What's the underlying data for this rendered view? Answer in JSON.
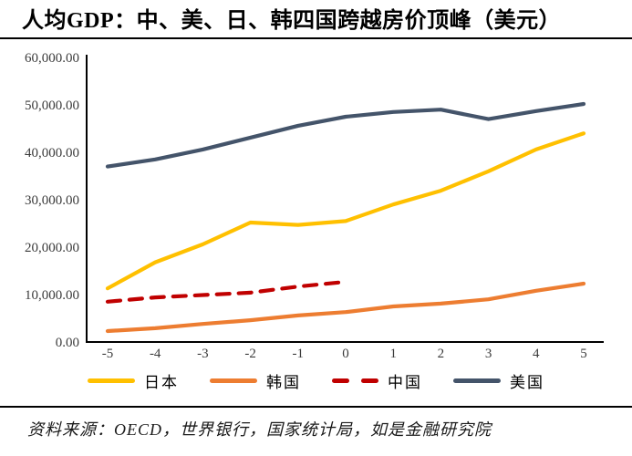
{
  "title": "人均GDP：中、美、日、韩四国跨越房价顶峰（美元）",
  "source": "资料来源：OECD，世界银行，国家统计局，如是金融研究院",
  "chart_data": {
    "type": "line",
    "x": [
      -5,
      -4,
      -3,
      -2,
      -1,
      0,
      1,
      2,
      3,
      4,
      5
    ],
    "series": [
      {
        "name": "日本",
        "color": "#FFC000",
        "dashed": false,
        "values": [
          11300,
          16800,
          20600,
          25200,
          24700,
          25500,
          29000,
          31900,
          36000,
          40600,
          44000
        ]
      },
      {
        "name": "韩国",
        "color": "#ED7D31",
        "dashed": false,
        "values": [
          2300,
          2900,
          3800,
          4600,
          5600,
          6300,
          7500,
          8100,
          9000,
          10800,
          12300
        ]
      },
      {
        "name": "中国",
        "color": "#C00000",
        "dashed": true,
        "values": [
          8500,
          9400,
          9900,
          10400,
          11700,
          12700,
          null,
          null,
          null,
          null,
          null
        ]
      },
      {
        "name": "美国",
        "color": "#44546A",
        "dashed": false,
        "values": [
          37000,
          38500,
          40600,
          43100,
          45600,
          47500,
          48500,
          49000,
          47000,
          48700,
          50200
        ]
      }
    ],
    "title": "人均GDP：中、美、日、韩四国跨越房价顶峰（美元）",
    "xlabel": "",
    "ylabel": "",
    "ylim": [
      0,
      60000
    ],
    "ytick_step": 10000,
    "ytick_labels": [
      "0.00",
      "10,000.00",
      "20,000.00",
      "30,000.00",
      "40,000.00",
      "50,000.00",
      "60,000.00"
    ],
    "grid": false,
    "legend_position": "bottom",
    "axis_color": "#000000",
    "tick_label_color": "#3b3b3b"
  }
}
